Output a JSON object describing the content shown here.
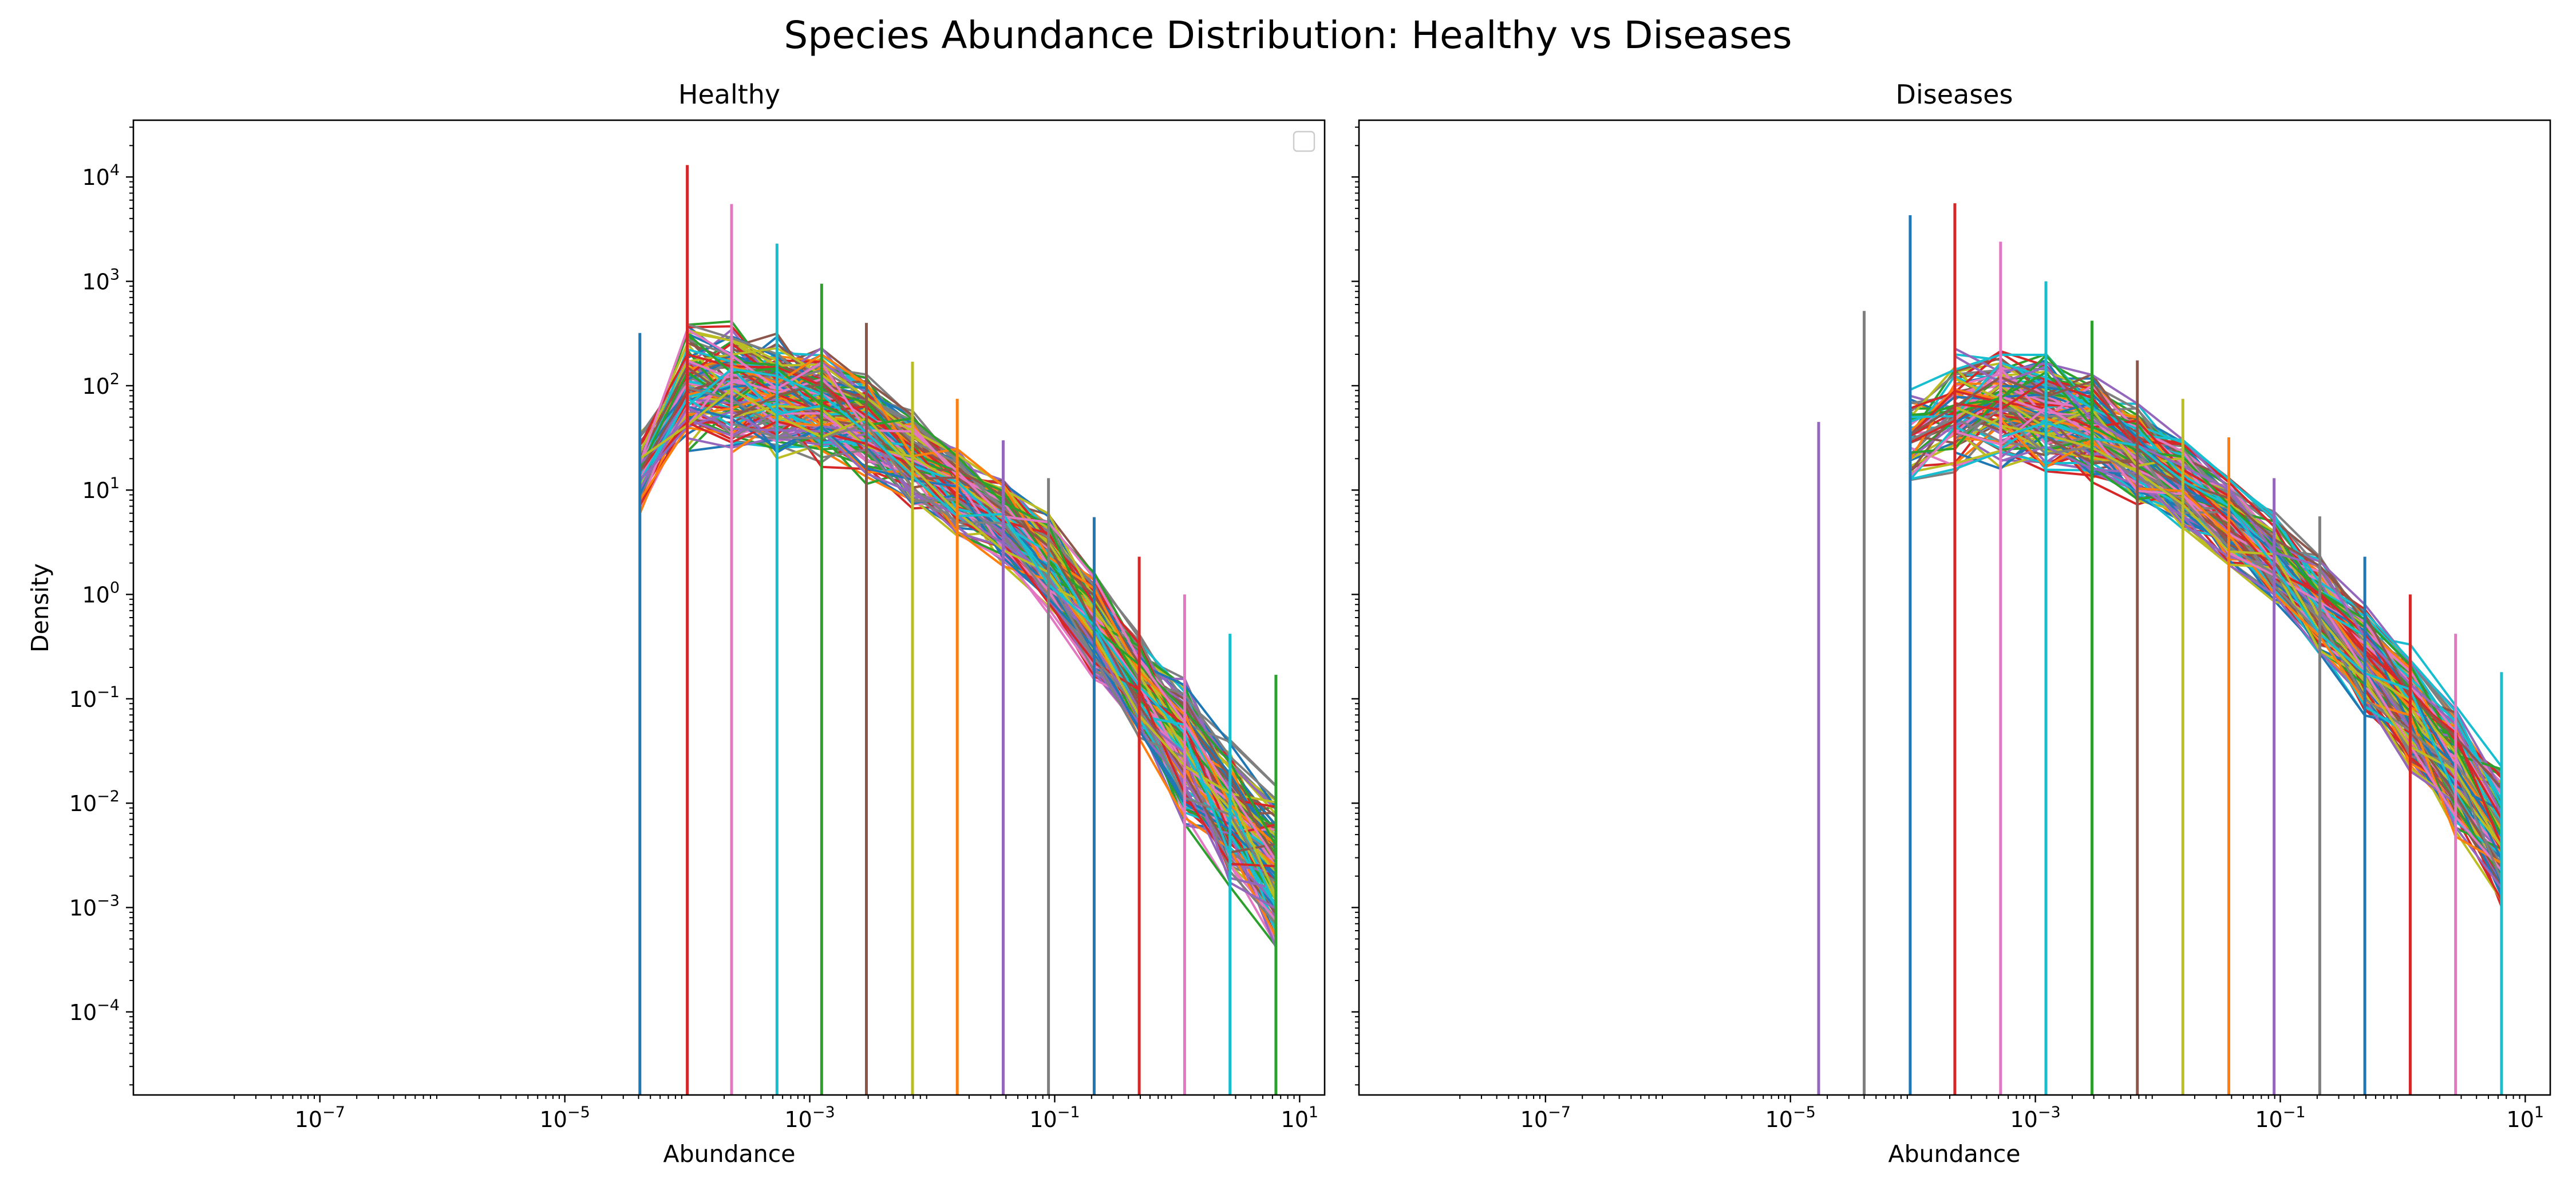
{
  "figure": {
    "suptitle": "Species Abundance Distribution: Healthy vs Diseases",
    "background": "#ffffff"
  },
  "chart_data": [
    {
      "type": "line",
      "title": "Healthy",
      "xlabel": "Abundance",
      "ylabel": "Density",
      "xscale": "log",
      "yscale": "log",
      "xlim": [
        3e-09,
        16
      ],
      "ylim": [
        1.6e-05,
        35000
      ],
      "xticks": [
        {
          "value": 1e-07,
          "base": "10",
          "exp": "−7"
        },
        {
          "value": 1e-05,
          "base": "10",
          "exp": "−5"
        },
        {
          "value": 0.001,
          "base": "10",
          "exp": "−3"
        },
        {
          "value": 0.1,
          "base": "10",
          "exp": "−1"
        },
        {
          "value": 10,
          "base": "10",
          "exp": "1"
        }
      ],
      "yticks": [
        {
          "value": 0.0001,
          "base": "10",
          "exp": "−4"
        },
        {
          "value": 0.001,
          "base": "10",
          "exp": "−3"
        },
        {
          "value": 0.01,
          "base": "10",
          "exp": "−2"
        },
        {
          "value": 0.1,
          "base": "10",
          "exp": "−1"
        },
        {
          "value": 1,
          "base": "10",
          "exp": "0"
        },
        {
          "value": 10,
          "base": "10",
          "exp": "1"
        },
        {
          "value": 100,
          "base": "10",
          "exp": "2"
        },
        {
          "value": 1000,
          "base": "10",
          "exp": "3"
        },
        {
          "value": 10000,
          "base": "10",
          "exp": "4"
        }
      ],
      "legend": {
        "position": "top-right",
        "entries": []
      },
      "bins": [
        4.1e-05,
        0.0001,
        0.00023,
        0.00054,
        0.00125,
        0.0029,
        0.0069,
        0.016,
        0.038,
        0.089,
        0.21,
        0.49,
        1.15,
        2.7,
        6.4
      ],
      "spikes": [
        {
          "x": 4.1e-05,
          "y": 320
        },
        {
          "x": 0.0001,
          "y": 13000
        },
        {
          "x": 0.00023,
          "y": 5500
        },
        {
          "x": 0.00054,
          "y": 2300
        },
        {
          "x": 0.00125,
          "y": 950
        },
        {
          "x": 0.0029,
          "y": 400
        },
        {
          "x": 0.0069,
          "y": 170
        },
        {
          "x": 0.016,
          "y": 75
        },
        {
          "x": 0.038,
          "y": 30
        },
        {
          "x": 0.089,
          "y": 13
        },
        {
          "x": 0.21,
          "y": 5.5
        },
        {
          "x": 0.49,
          "y": 2.3
        },
        {
          "x": 1.15,
          "y": 1.0
        },
        {
          "x": 2.7,
          "y": 0.42
        },
        {
          "x": 6.4,
          "y": 0.17
        }
      ],
      "envelope_log10": {
        "center": [
          1.2,
          2.0,
          2.0,
          1.9,
          1.8,
          1.6,
          1.3,
          1.0,
          0.7,
          0.3,
          -0.3,
          -0.9,
          -1.5,
          -2.1,
          -2.6
        ],
        "spread": [
          0.45,
          0.65,
          0.65,
          0.62,
          0.6,
          0.55,
          0.5,
          0.45,
          0.45,
          0.5,
          0.55,
          0.6,
          0.7,
          0.75,
          0.8
        ]
      },
      "series_count": 160,
      "seed": 11
    },
    {
      "type": "line",
      "title": "Diseases",
      "xlabel": "Abundance",
      "ylabel": "",
      "xscale": "log",
      "yscale": "log",
      "xlim": [
        3e-09,
        16
      ],
      "ylim": [
        1.6e-05,
        35000
      ],
      "xticks": [
        {
          "value": 1e-07,
          "base": "10",
          "exp": "−7"
        },
        {
          "value": 1e-05,
          "base": "10",
          "exp": "−5"
        },
        {
          "value": 0.001,
          "base": "10",
          "exp": "−3"
        },
        {
          "value": 0.1,
          "base": "10",
          "exp": "−1"
        },
        {
          "value": 10,
          "base": "10",
          "exp": "1"
        }
      ],
      "yticks": [
        {
          "value": 0.0001,
          "base": "10",
          "exp": "−4"
        },
        {
          "value": 0.001,
          "base": "10",
          "exp": "−3"
        },
        {
          "value": 0.01,
          "base": "10",
          "exp": "−2"
        },
        {
          "value": 0.1,
          "base": "10",
          "exp": "−1"
        },
        {
          "value": 1,
          "base": "10",
          "exp": "0"
        },
        {
          "value": 10,
          "base": "10",
          "exp": "1"
        },
        {
          "value": 100,
          "base": "10",
          "exp": "2"
        },
        {
          "value": 1000,
          "base": "10",
          "exp": "3"
        },
        {
          "value": 10000,
          "base": "10",
          "exp": "4"
        }
      ],
      "show_y_tick_labels": false,
      "bins": [
        1.7e-05,
        4e-05,
        9.5e-05,
        0.00022,
        0.00052,
        0.00122,
        0.0029,
        0.0068,
        0.016,
        0.038,
        0.089,
        0.21,
        0.49,
        1.15,
        2.7,
        6.4
      ],
      "spikes": [
        {
          "x": 1.7e-05,
          "y": 45
        },
        {
          "x": 4e-05,
          "y": 520
        },
        {
          "x": 9.5e-05,
          "y": 4300
        },
        {
          "x": 0.00022,
          "y": 5600
        },
        {
          "x": 0.00052,
          "y": 2400
        },
        {
          "x": 0.00122,
          "y": 1000
        },
        {
          "x": 0.0029,
          "y": 420
        },
        {
          "x": 0.0068,
          "y": 175
        },
        {
          "x": 0.016,
          "y": 75
        },
        {
          "x": 0.038,
          "y": 32
        },
        {
          "x": 0.089,
          "y": 13
        },
        {
          "x": 0.21,
          "y": 5.6
        },
        {
          "x": 0.49,
          "y": 2.3
        },
        {
          "x": 1.15,
          "y": 1.0
        },
        {
          "x": 2.7,
          "y": 0.42
        },
        {
          "x": 6.4,
          "y": 0.18
        }
      ],
      "envelope_log10": {
        "center": [
          1.0,
          1.15,
          1.5,
          1.75,
          1.8,
          1.75,
          1.6,
          1.35,
          1.05,
          0.7,
          0.35,
          -0.1,
          -0.6,
          -1.1,
          -1.7,
          -2.3
        ],
        "spread": [
          0.3,
          0.4,
          0.55,
          0.6,
          0.6,
          0.6,
          0.55,
          0.5,
          0.45,
          0.45,
          0.45,
          0.5,
          0.55,
          0.6,
          0.65,
          0.7
        ]
      },
      "start_bin_min": 2,
      "series_count": 160,
      "seed": 23
    }
  ],
  "style": {
    "palette": [
      "#1f77b4",
      "#ff7f0e",
      "#2ca02c",
      "#d62728",
      "#9467bd",
      "#8c564b",
      "#e377c2",
      "#7f7f7f",
      "#bcbd22",
      "#17becf"
    ],
    "axis_color": "#000000",
    "legend_border": "#cccccc"
  }
}
